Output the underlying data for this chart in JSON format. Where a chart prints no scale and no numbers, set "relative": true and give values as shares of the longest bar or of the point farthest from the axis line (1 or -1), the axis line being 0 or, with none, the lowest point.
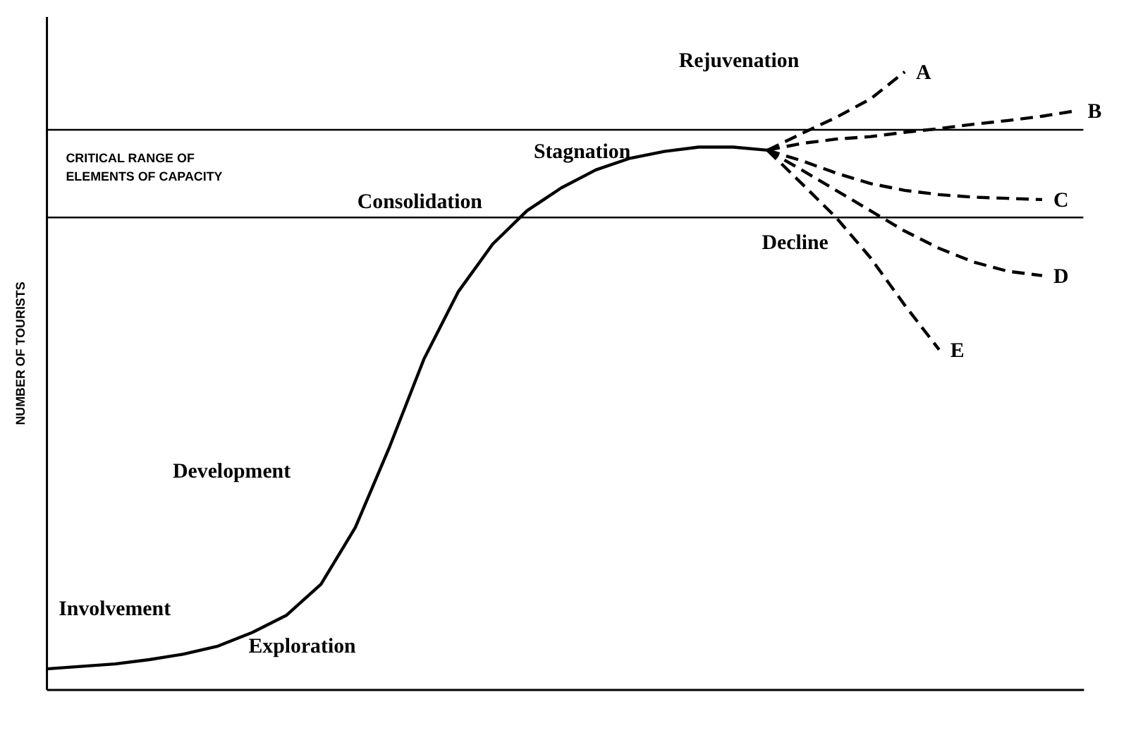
{
  "chart_data": {
    "type": "line",
    "relative": true,
    "ylabel": "NUMBER OF TOURISTS",
    "grid": false,
    "marker": "none",
    "categories": [
      null,
      null,
      null,
      null,
      null,
      null,
      null,
      null,
      null,
      null,
      null,
      null,
      null,
      null,
      null,
      null,
      null,
      null,
      null,
      null,
      null,
      null,
      null,
      null,
      null,
      null,
      null,
      null,
      null,
      null,
      null
    ],
    "series": [
      {
        "color": "#000000",
        "line_style": "solid",
        "values": [
          0.033,
          0.037,
          0.041,
          0.048,
          0.057,
          0.07,
          0.092,
          0.12,
          0.17,
          0.262,
          0.393,
          0.535,
          0.644,
          0.721,
          0.775,
          0.812,
          0.841,
          0.86,
          0.871,
          0.878,
          0.878,
          0.873,
          null,
          null,
          null,
          null,
          null,
          null,
          null,
          null,
          null
        ]
      },
      {
        "name": "A",
        "color": "#000000",
        "line_style": "dashed",
        "values": [
          null,
          null,
          null,
          null,
          null,
          null,
          null,
          null,
          null,
          null,
          null,
          null,
          null,
          null,
          null,
          null,
          null,
          null,
          null,
          null,
          null,
          0.873,
          0.9,
          0.926,
          0.956,
          1.0,
          null,
          null,
          null,
          null,
          null
        ]
      },
      {
        "name": "B",
        "color": "#000000",
        "line_style": "dashed",
        "values": [
          null,
          null,
          null,
          null,
          null,
          null,
          null,
          null,
          null,
          null,
          null,
          null,
          null,
          null,
          null,
          null,
          null,
          null,
          null,
          null,
          null,
          0.873,
          0.884,
          0.891,
          0.895,
          0.902,
          0.908,
          0.915,
          0.921,
          0.928,
          0.937
        ]
      },
      {
        "name": "C",
        "color": "#000000",
        "line_style": "dashed",
        "values": [
          null,
          null,
          null,
          null,
          null,
          null,
          null,
          null,
          null,
          null,
          null,
          null,
          null,
          null,
          null,
          null,
          null,
          null,
          null,
          null,
          null,
          0.873,
          0.856,
          0.836,
          0.819,
          0.808,
          0.801,
          0.797,
          0.795,
          0.793,
          null
        ]
      },
      {
        "name": "D",
        "color": "#000000",
        "line_style": "dashed",
        "values": [
          null,
          null,
          null,
          null,
          null,
          null,
          null,
          null,
          null,
          null,
          null,
          null,
          null,
          null,
          null,
          null,
          null,
          null,
          null,
          null,
          null,
          0.873,
          0.841,
          0.808,
          0.775,
          0.742,
          0.714,
          0.692,
          0.677,
          0.67,
          null
        ]
      },
      {
        "name": "E",
        "color": "#000000",
        "line_style": "dashed",
        "values": [
          null,
          null,
          null,
          null,
          null,
          null,
          null,
          null,
          null,
          null,
          null,
          null,
          null,
          null,
          null,
          null,
          null,
          null,
          null,
          null,
          null,
          0.873,
          0.819,
          0.764,
          0.699,
          0.622,
          0.55,
          null,
          null,
          null,
          null
        ]
      }
    ],
    "ref_lines": [
      {
        "axis": "y",
        "value": 0.906,
        "label": "CRITICAL RANGE OF\nELEMENTS OF CAPACITY",
        "color": "#000000",
        "line_style": "solid"
      },
      {
        "axis": "y",
        "value": 0.764,
        "color": "#000000",
        "line_style": "solid"
      }
    ],
    "annotations": [
      "Exploration",
      "Involvement",
      "Development",
      "Consolidation",
      "Stagnation",
      "Rejuvenation",
      "Decline"
    ]
  }
}
